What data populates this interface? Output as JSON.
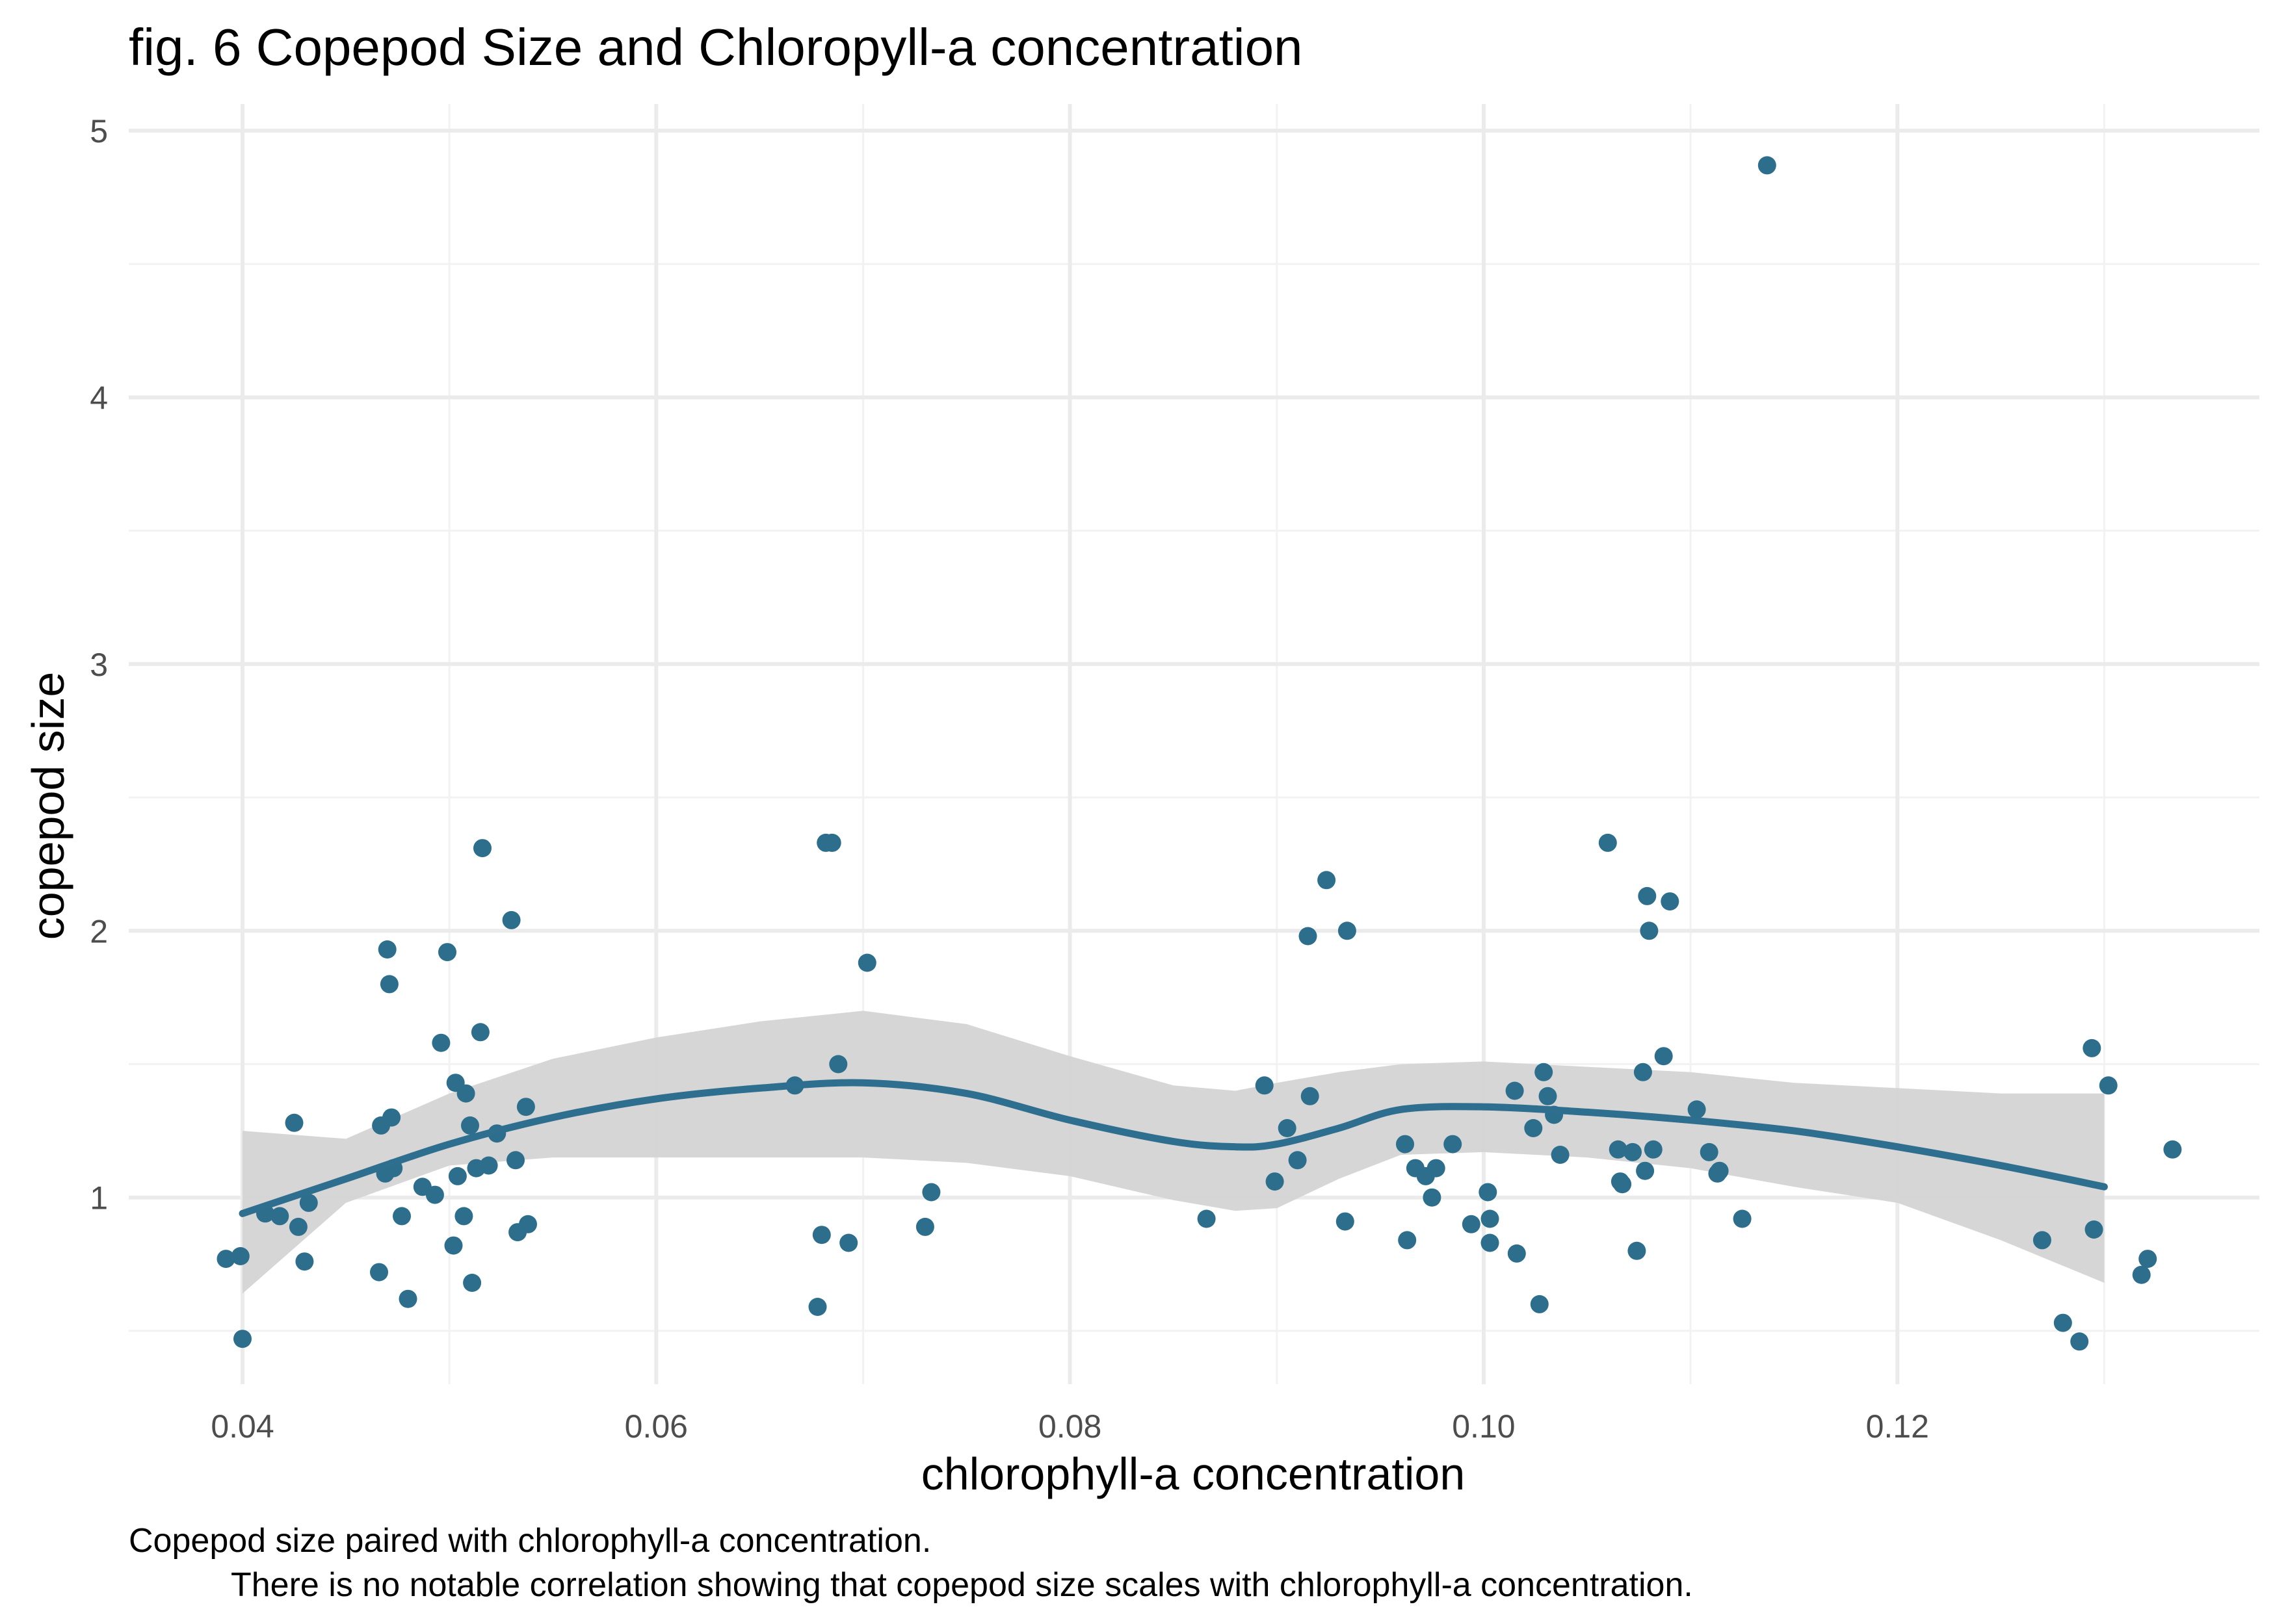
{
  "chart_data": {
    "type": "scatter",
    "title": "fig. 6 Copepod Size and Chloropyll-a concentration",
    "xlabel": "chlorophyll-a concentration",
    "ylabel": "copepod size",
    "caption_lines": [
      "Copepod size paired with chlorophyll-a concentration.",
      "There is no notable correlation showing that copepod size scales with chlorophyll-a concentration."
    ],
    "xlim": [
      0.0345,
      0.1375
    ],
    "ylim": [
      0.3,
      5.1
    ],
    "x_ticks": [
      0.04,
      0.06,
      0.08,
      0.1,
      0.12
    ],
    "x_tick_labels": [
      "0.04",
      "0.06",
      "0.08",
      "0.10",
      "0.12"
    ],
    "y_ticks": [
      1,
      2,
      3,
      4,
      5
    ],
    "y_tick_labels": [
      "1",
      "2",
      "3",
      "4",
      "5"
    ],
    "grid": true,
    "point_color": "#2c6e8c",
    "line_color": "#2e6e8e",
    "ribbon_color": "#d4d4d4",
    "points": [
      [
        0.0392,
        0.77
      ],
      [
        0.0399,
        0.78
      ],
      [
        0.04,
        0.47
      ],
      [
        0.0411,
        0.94
      ],
      [
        0.0418,
        0.93
      ],
      [
        0.0425,
        1.28
      ],
      [
        0.0427,
        0.89
      ],
      [
        0.043,
        0.76
      ],
      [
        0.0432,
        0.98
      ],
      [
        0.0466,
        0.72
      ],
      [
        0.0467,
        1.27
      ],
      [
        0.0469,
        1.09
      ],
      [
        0.047,
        1.93
      ],
      [
        0.0471,
        1.8
      ],
      [
        0.0472,
        1.3
      ],
      [
        0.0473,
        1.11
      ],
      [
        0.0477,
        0.93
      ],
      [
        0.048,
        0.62
      ],
      [
        0.0487,
        1.04
      ],
      [
        0.0493,
        1.01
      ],
      [
        0.0496,
        1.58
      ],
      [
        0.0499,
        1.92
      ],
      [
        0.0502,
        0.82
      ],
      [
        0.0503,
        1.43
      ],
      [
        0.0504,
        1.08
      ],
      [
        0.0507,
        0.93
      ],
      [
        0.0508,
        1.39
      ],
      [
        0.051,
        1.27
      ],
      [
        0.0511,
        0.68
      ],
      [
        0.0513,
        1.11
      ],
      [
        0.0515,
        1.62
      ],
      [
        0.0516,
        2.31
      ],
      [
        0.0519,
        1.12
      ],
      [
        0.0523,
        1.24
      ],
      [
        0.053,
        2.04
      ],
      [
        0.0532,
        1.14
      ],
      [
        0.0533,
        0.87
      ],
      [
        0.0537,
        1.34
      ],
      [
        0.0538,
        0.9
      ],
      [
        0.0667,
        1.42
      ],
      [
        0.0678,
        0.59
      ],
      [
        0.068,
        0.86
      ],
      [
        0.0682,
        2.33
      ],
      [
        0.0685,
        2.33
      ],
      [
        0.0688,
        1.5
      ],
      [
        0.0693,
        0.83
      ],
      [
        0.0702,
        1.88
      ],
      [
        0.073,
        0.89
      ],
      [
        0.0733,
        1.02
      ],
      [
        0.0866,
        0.92
      ],
      [
        0.0894,
        1.42
      ],
      [
        0.0899,
        1.06
      ],
      [
        0.0905,
        1.26
      ],
      [
        0.091,
        1.14
      ],
      [
        0.0915,
        1.98
      ],
      [
        0.0916,
        1.38
      ],
      [
        0.0924,
        2.19
      ],
      [
        0.0933,
        0.91
      ],
      [
        0.0934,
        2.0
      ],
      [
        0.0962,
        1.2
      ],
      [
        0.0963,
        0.84
      ],
      [
        0.0967,
        1.11
      ],
      [
        0.0972,
        1.08
      ],
      [
        0.0975,
        1.0
      ],
      [
        0.0977,
        1.11
      ],
      [
        0.0985,
        1.2
      ],
      [
        0.0994,
        0.9
      ],
      [
        0.1002,
        1.02
      ],
      [
        0.1003,
        0.92
      ],
      [
        0.1003,
        0.83
      ],
      [
        0.1015,
        1.4
      ],
      [
        0.1016,
        0.79
      ],
      [
        0.1024,
        1.26
      ],
      [
        0.1027,
        0.6
      ],
      [
        0.1029,
        1.47
      ],
      [
        0.1031,
        1.38
      ],
      [
        0.1034,
        1.31
      ],
      [
        0.1037,
        1.16
      ],
      [
        0.106,
        2.33
      ],
      [
        0.1065,
        1.18
      ],
      [
        0.1066,
        1.06
      ],
      [
        0.1067,
        1.05
      ],
      [
        0.1072,
        1.17
      ],
      [
        0.1074,
        0.8
      ],
      [
        0.1077,
        1.47
      ],
      [
        0.1078,
        1.1
      ],
      [
        0.1079,
        2.13
      ],
      [
        0.108,
        2.0
      ],
      [
        0.1082,
        1.18
      ],
      [
        0.1087,
        1.53
      ],
      [
        0.109,
        2.11
      ],
      [
        0.1103,
        1.33
      ],
      [
        0.1109,
        1.17
      ],
      [
        0.1113,
        1.09
      ],
      [
        0.1114,
        1.1
      ],
      [
        0.1125,
        0.92
      ],
      [
        0.1137,
        4.87
      ],
      [
        0.127,
        0.84
      ],
      [
        0.128,
        0.53
      ],
      [
        0.1288,
        0.46
      ],
      [
        0.1294,
        1.56
      ],
      [
        0.1295,
        0.88
      ],
      [
        0.1302,
        1.42
      ],
      [
        0.1318,
        0.71
      ],
      [
        0.1321,
        0.77
      ],
      [
        0.1333,
        1.18
      ]
    ],
    "smooth": {
      "x": [
        0.04,
        0.045,
        0.05,
        0.055,
        0.06,
        0.065,
        0.07,
        0.075,
        0.08,
        0.085,
        0.088,
        0.09,
        0.093,
        0.096,
        0.1,
        0.105,
        0.11,
        0.115,
        0.12,
        0.125,
        0.13
      ],
      "y": [
        0.94,
        1.07,
        1.2,
        1.3,
        1.37,
        1.41,
        1.43,
        1.39,
        1.29,
        1.21,
        1.19,
        1.2,
        1.26,
        1.33,
        1.34,
        1.32,
        1.29,
        1.25,
        1.19,
        1.12,
        1.04
      ],
      "lower": [
        0.64,
        0.98,
        1.12,
        1.15,
        1.15,
        1.15,
        1.15,
        1.13,
        1.08,
        0.99,
        0.95,
        0.96,
        1.07,
        1.16,
        1.17,
        1.15,
        1.11,
        1.04,
        0.98,
        0.84,
        0.68
      ],
      "upper": [
        1.25,
        1.22,
        1.39,
        1.52,
        1.6,
        1.66,
        1.7,
        1.65,
        1.53,
        1.42,
        1.4,
        1.43,
        1.47,
        1.5,
        1.51,
        1.49,
        1.47,
        1.43,
        1.41,
        1.39,
        1.39
      ]
    }
  }
}
